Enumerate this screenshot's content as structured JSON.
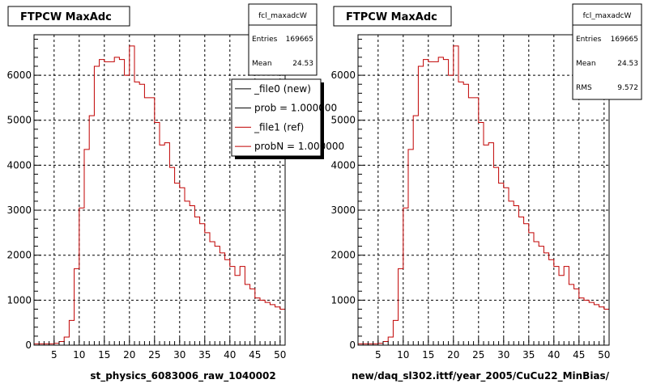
{
  "chart_data": [
    {
      "type": "line",
      "title": "FTPCW MaxAdc",
      "xlabel": "st_physics_6083006_raw_1040002",
      "xlim": [
        1,
        51
      ],
      "ylim": [
        0,
        6900
      ],
      "xticks": [
        5,
        10,
        15,
        20,
        25,
        30,
        35,
        40,
        45,
        50
      ],
      "yticks": [
        0,
        1000,
        2000,
        3000,
        4000,
        5000,
        6000
      ],
      "grid": true,
      "stats": {
        "name": "fcl_maxadcW",
        "rows": [
          {
            "label": "Entries",
            "value": "169665"
          },
          {
            "label": "Mean",
            "value": "24.53"
          }
        ]
      },
      "legend": {
        "placement": "top-right",
        "entries": [
          {
            "label": "_file0 (new)",
            "color": "#000000"
          },
          {
            "label": "prob = 1.000000",
            "color": "#000000"
          },
          {
            "label": "_file1 (ref)",
            "color": "#c00000"
          },
          {
            "label": "probN = 1.000000",
            "color": "#c00000"
          }
        ]
      },
      "series": [
        {
          "color": "#c00000",
          "bin_start": 1,
          "bin_width": 1,
          "values": [
            30,
            30,
            30,
            30,
            40,
            80,
            180,
            550,
            1700,
            3050,
            4350,
            5100,
            6200,
            6350,
            6300,
            6300,
            6400,
            6350,
            6000,
            6650,
            5850,
            5800,
            5500,
            5500,
            4950,
            4450,
            4500,
            3950,
            3600,
            3500,
            3200,
            3100,
            2850,
            2700,
            2500,
            2300,
            2200,
            2050,
            1900,
            1750,
            1550,
            1750,
            1350,
            1250,
            1050,
            1000,
            950,
            900,
            850,
            800
          ]
        }
      ]
    },
    {
      "type": "line",
      "title": "FTPCW MaxAdc",
      "xlabel": "new/daq_sl302.ittf/year_2005/CuCu22_MinBias/",
      "xlim": [
        1,
        51
      ],
      "ylim": [
        0,
        6900
      ],
      "xticks": [
        5,
        10,
        15,
        20,
        25,
        30,
        35,
        40,
        45,
        50
      ],
      "yticks": [
        0,
        1000,
        2000,
        3000,
        4000,
        5000,
        6000
      ],
      "grid": true,
      "stats": {
        "name": "fcl_maxadcW",
        "rows": [
          {
            "label": "Entries",
            "value": "169665"
          },
          {
            "label": "Mean",
            "value": "24.53"
          },
          {
            "label": "RMS",
            "value": "9.572"
          }
        ]
      },
      "series": [
        {
          "color": "#c00000",
          "bin_start": 1,
          "bin_width": 1,
          "values": [
            30,
            30,
            30,
            30,
            40,
            80,
            180,
            550,
            1700,
            3050,
            4350,
            5100,
            6200,
            6350,
            6300,
            6300,
            6400,
            6350,
            6000,
            6650,
            5850,
            5800,
            5500,
            5500,
            4950,
            4450,
            4500,
            3950,
            3600,
            3500,
            3200,
            3100,
            2850,
            2700,
            2500,
            2300,
            2200,
            2050,
            1900,
            1750,
            1550,
            1750,
            1350,
            1250,
            1050,
            1000,
            950,
            900,
            850,
            800
          ]
        }
      ]
    }
  ]
}
